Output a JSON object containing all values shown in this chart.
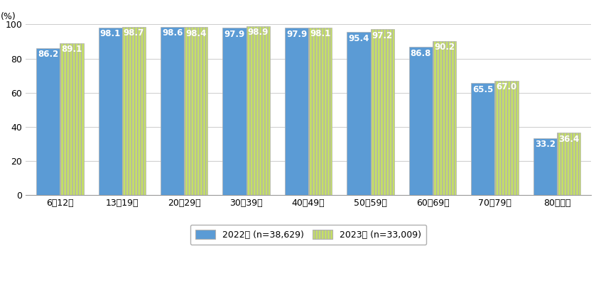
{
  "categories": [
    "6～12歳",
    "13～19歳",
    "20～29歳",
    "30～39歳",
    "40～49歳",
    "50～59歳",
    "60～69歳",
    "70～79歳",
    "80歳以上"
  ],
  "values_2022": [
    86.2,
    98.1,
    98.6,
    97.9,
    97.9,
    95.4,
    86.8,
    65.5,
    33.2
  ],
  "values_2023": [
    89.1,
    98.7,
    98.4,
    98.9,
    98.1,
    97.2,
    90.2,
    67.0,
    36.4
  ],
  "color_2022": "#5B9BD5",
  "color_2023": "#C5E065",
  "hatch_2023": "||||",
  "legend_2022": "2022年 (n=38,629)",
  "legend_2023": "2023年 (n=33,009)",
  "ylabel": "(%)",
  "ylim": [
    0,
    100
  ],
  "yticks": [
    0,
    20,
    40,
    60,
    80,
    100
  ],
  "bar_width": 0.38,
  "background_color": "#ffffff",
  "grid_color": "#cccccc",
  "label_fontsize": 8.5,
  "tick_fontsize": 9,
  "legend_fontsize": 9
}
